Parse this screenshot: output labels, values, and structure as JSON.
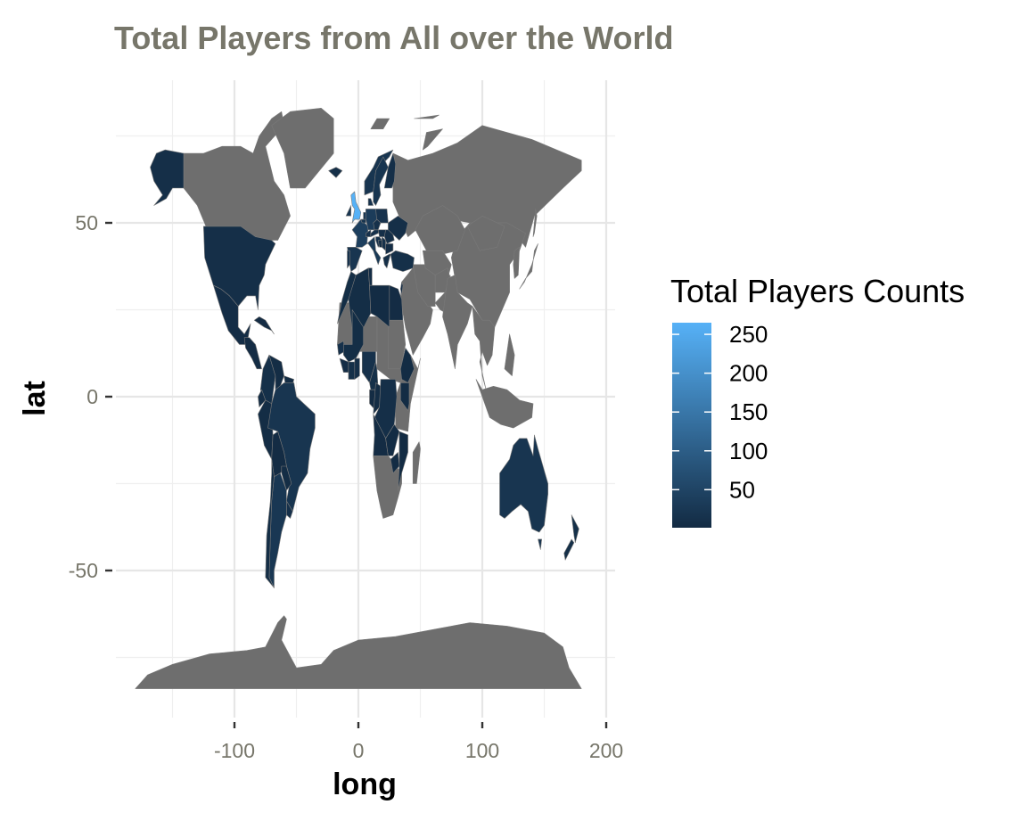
{
  "chart_data": {
    "type": "choropleth-map",
    "title": "Total Players from All over the World",
    "xlabel": "long",
    "ylabel": "lat",
    "xlim": [
      -185,
      200
    ],
    "ylim": [
      -90,
      90
    ],
    "x_ticks": [
      -100,
      0,
      100,
      200
    ],
    "y_ticks": [
      -50,
      0,
      50
    ],
    "x_tick_labels": [
      "-100",
      "0",
      "100",
      "200"
    ],
    "y_tick_labels": [
      "-50",
      "0",
      "50"
    ],
    "grid": true,
    "no_data_color": "#6e6e6e",
    "legend": {
      "title": "Total Players Counts",
      "placement": "right",
      "min": 1,
      "max": 265,
      "breaks": [
        250,
        200,
        150,
        100,
        50
      ],
      "break_labels": [
        "250",
        "200",
        "150",
        "100",
        "50"
      ],
      "low_color": "#132b43",
      "high_color": "#56b1f7"
    },
    "regions": [
      {
        "region": "USA",
        "value": 8
      },
      {
        "region": "Alaska",
        "value": 8
      },
      {
        "region": "Mexico",
        "value": 5
      },
      {
        "region": "Central America",
        "value": 3
      },
      {
        "region": "Caribbean",
        "value": 3
      },
      {
        "region": "Colombia",
        "value": 10
      },
      {
        "region": "Venezuela",
        "value": 4
      },
      {
        "region": "Ecuador",
        "value": 4
      },
      {
        "region": "Peru",
        "value": 4
      },
      {
        "region": "Brazil",
        "value": 20
      },
      {
        "region": "Bolivia",
        "value": 3
      },
      {
        "region": "Paraguay",
        "value": 4
      },
      {
        "region": "Uruguay",
        "value": 12
      },
      {
        "region": "Chile",
        "value": 6
      },
      {
        "region": "Argentina",
        "value": 25
      },
      {
        "region": "Morocco",
        "value": 6
      },
      {
        "region": "Algeria",
        "value": 6
      },
      {
        "region": "Tunisia",
        "value": 4
      },
      {
        "region": "Libya",
        "value": 2
      },
      {
        "region": "Egypt",
        "value": 3
      },
      {
        "region": "Senegal",
        "value": 12
      },
      {
        "region": "Mali",
        "value": 6
      },
      {
        "region": "Guinea",
        "value": 5
      },
      {
        "region": "Ivory Coast",
        "value": 10
      },
      {
        "region": "Ghana",
        "value": 8
      },
      {
        "region": "Nigeria",
        "value": 12
      },
      {
        "region": "Cameroon",
        "value": 10
      },
      {
        "region": "Gabon",
        "value": 3
      },
      {
        "region": "Congo",
        "value": 4
      },
      {
        "region": "DR Congo",
        "value": 8
      },
      {
        "region": "Angola",
        "value": 3
      },
      {
        "region": "Zambia",
        "value": 2
      },
      {
        "region": "Zimbabwe",
        "value": 2
      },
      {
        "region": "Mozambique",
        "value": 2
      },
      {
        "region": "Kenya",
        "value": 2
      },
      {
        "region": "Ethiopia",
        "value": 2
      },
      {
        "region": "Spain",
        "value": 20
      },
      {
        "region": "Portugal",
        "value": 15
      },
      {
        "region": "France",
        "value": 40
      },
      {
        "region": "Belgium",
        "value": 18
      },
      {
        "region": "Netherlands",
        "value": 25
      },
      {
        "region": "Germany",
        "value": 35
      },
      {
        "region": "Switzerland",
        "value": 15
      },
      {
        "region": "Austria",
        "value": 12
      },
      {
        "region": "Italy",
        "value": 30
      },
      {
        "region": "Norway",
        "value": 20
      },
      {
        "region": "Sweden",
        "value": 20
      },
      {
        "region": "Denmark",
        "value": 15
      },
      {
        "region": "Finland",
        "value": 8
      },
      {
        "region": "Poland",
        "value": 15
      },
      {
        "region": "Czech Republic",
        "value": 12
      },
      {
        "region": "Hungary",
        "value": 8
      },
      {
        "region": "Croatia",
        "value": 12
      },
      {
        "region": "Serbia",
        "value": 12
      },
      {
        "region": "Bosnia",
        "value": 6
      },
      {
        "region": "Romania",
        "value": 8
      },
      {
        "region": "Bulgaria",
        "value": 5
      },
      {
        "region": "Greece",
        "value": 8
      },
      {
        "region": "Turkey",
        "value": 10
      },
      {
        "region": "Ukraine",
        "value": 8
      },
      {
        "region": "Ireland",
        "value": 20
      },
      {
        "region": "UK",
        "value": 265
      },
      {
        "region": "Iceland",
        "value": 8
      },
      {
        "region": "Israel",
        "value": 3
      },
      {
        "region": "Australia",
        "value": 20
      },
      {
        "region": "New Zealand",
        "value": 10
      }
    ]
  }
}
